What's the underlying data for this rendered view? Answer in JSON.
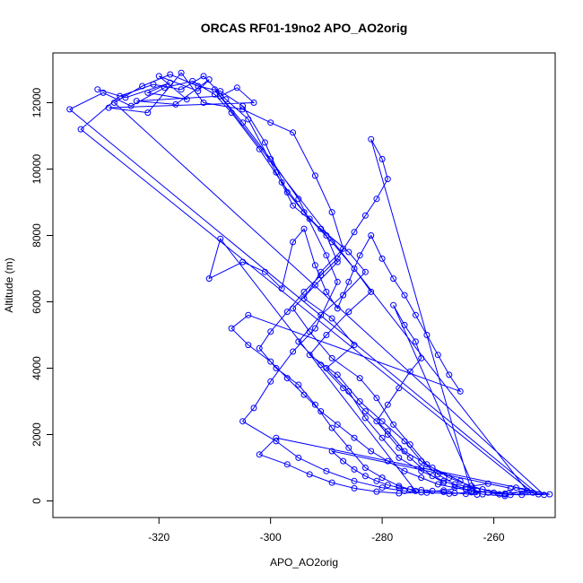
{
  "chart_data": {
    "type": "scatter",
    "title": "ORCAS RF01-19no2 APO_AO2orig",
    "xlabel": "APO_AO2orig",
    "ylabel": "Altitude (m)",
    "xlim": [
      -339,
      -249
    ],
    "ylim": [
      -500,
      13500
    ],
    "xticks": [
      -320,
      -300,
      -280,
      -260
    ],
    "yticks": [
      0,
      2000,
      4000,
      6000,
      8000,
      10000,
      12000
    ],
    "marker": "open-circle",
    "connected": true,
    "color": "#0000ff",
    "grid": false,
    "series": [
      {
        "values": [
          [
            -331,
            12400
          ],
          [
            -326,
            12150
          ],
          [
            -318,
            12600
          ],
          [
            -322,
            12300
          ],
          [
            -315,
            12100
          ],
          [
            -320,
            12800
          ],
          [
            -313,
            12350
          ],
          [
            -311,
            12700
          ],
          [
            -317,
            11950
          ],
          [
            -324,
            12050
          ],
          [
            -309,
            12200
          ],
          [
            -306,
            12450
          ],
          [
            -303,
            12000
          ],
          [
            -329,
            11850
          ],
          [
            -322,
            11700
          ],
          [
            -316,
            12900
          ],
          [
            -312,
            12000
          ],
          [
            -305,
            11800
          ],
          [
            -300,
            11400
          ],
          [
            -296,
            11100
          ],
          [
            -292,
            9800
          ],
          [
            -289,
            8700
          ],
          [
            -287,
            7600
          ],
          [
            -291,
            6900
          ],
          [
            -294,
            6100
          ],
          [
            -289,
            5500
          ],
          [
            -285,
            4700
          ],
          [
            -290,
            4000
          ],
          [
            -286,
            3300
          ],
          [
            -283,
            2500
          ],
          [
            -280,
            1900
          ],
          [
            -277,
            1300
          ],
          [
            -273,
            900
          ],
          [
            -269,
            600
          ],
          [
            -265,
            350
          ],
          [
            -262,
            200
          ],
          [
            -258,
            150
          ],
          [
            -255,
            300
          ],
          [
            -252,
            200
          ],
          [
            -336,
            11800
          ],
          [
            -330,
            12300
          ],
          [
            -325,
            11900
          ],
          [
            -319,
            12450
          ],
          [
            -314,
            12650
          ],
          [
            -310,
            12250
          ],
          [
            -307,
            11700
          ],
          [
            -302,
            10600
          ],
          [
            -298,
            9600
          ],
          [
            -294,
            8700
          ],
          [
            -290,
            8000
          ],
          [
            -288,
            7200
          ],
          [
            -292,
            6500
          ],
          [
            -296,
            5800
          ],
          [
            -293,
            5100
          ],
          [
            -289,
            4300
          ],
          [
            -284,
            3700
          ],
          [
            -281,
            3100
          ],
          [
            -278,
            2300
          ],
          [
            -275,
            1700
          ],
          [
            -272,
            1100
          ],
          [
            -268,
            700
          ],
          [
            -264,
            450
          ],
          [
            -260,
            250
          ],
          [
            -257,
            180
          ],
          [
            -253,
            250
          ],
          [
            -334,
            11200
          ],
          [
            -327,
            12200
          ],
          [
            -321,
            12550
          ],
          [
            -316,
            12400
          ],
          [
            -312,
            12800
          ],
          [
            -308,
            12100
          ],
          [
            -304,
            11500
          ],
          [
            -299,
            9900
          ],
          [
            -296,
            8900
          ],
          [
            -291,
            8200
          ],
          [
            -286,
            7500
          ],
          [
            -283,
            6900
          ],
          [
            -287,
            6200
          ],
          [
            -291,
            5600
          ],
          [
            -295,
            4800
          ],
          [
            -291,
            4100
          ],
          [
            -287,
            3400
          ],
          [
            -283,
            2700
          ],
          [
            -279,
            2100
          ],
          [
            -276,
            1500
          ],
          [
            -271,
            1000
          ],
          [
            -266,
            600
          ],
          [
            -263,
            300
          ],
          [
            -259,
            200
          ],
          [
            -256,
            400
          ],
          [
            -251,
            180
          ],
          [
            -328,
            12000
          ],
          [
            -323,
            12500
          ],
          [
            -318,
            12850
          ],
          [
            -313,
            12500
          ],
          [
            -309,
            12350
          ],
          [
            -305,
            11900
          ],
          [
            -301,
            10800
          ],
          [
            -297,
            9300
          ],
          [
            -293,
            8500
          ],
          [
            -289,
            7800
          ],
          [
            -285,
            7000
          ],
          [
            -282,
            6300
          ],
          [
            -286,
            5700
          ],
          [
            -290,
            5000
          ],
          [
            -293,
            4400
          ],
          [
            -288,
            3800
          ],
          [
            -284,
            3000
          ],
          [
            -280,
            2400
          ],
          [
            -276,
            1800
          ],
          [
            -273,
            1200
          ],
          [
            -270,
            800
          ],
          [
            -267,
            500
          ],
          [
            -262,
            350
          ],
          [
            -258,
            220
          ],
          [
            -254,
            300
          ],
          [
            -310,
            12400
          ],
          [
            -305,
            11400
          ],
          [
            -300,
            10300
          ],
          [
            -295,
            9100
          ],
          [
            -290,
            7400
          ],
          [
            -288,
            6600
          ],
          [
            -292,
            5200
          ],
          [
            -296,
            4500
          ],
          [
            -300,
            3600
          ],
          [
            -303,
            2800
          ],
          [
            -305,
            2400
          ],
          [
            -299,
            1800
          ],
          [
            -295,
            1300
          ],
          [
            -290,
            900
          ],
          [
            -285,
            600
          ],
          [
            -280,
            400
          ],
          [
            -276,
            300
          ],
          [
            -272,
            250
          ],
          [
            -268,
            220
          ],
          [
            -264,
            260
          ],
          [
            -282,
            10900
          ],
          [
            -280,
            10300
          ],
          [
            -279,
            9700
          ],
          [
            -281,
            9100
          ],
          [
            -283,
            8600
          ],
          [
            -285,
            8100
          ],
          [
            -288,
            7300
          ],
          [
            -291,
            6800
          ],
          [
            -294,
            6300
          ],
          [
            -297,
            5700
          ],
          [
            -300,
            5100
          ],
          [
            -302,
            4600
          ],
          [
            -299,
            4000
          ],
          [
            -295,
            3500
          ],
          [
            -292,
            2900
          ],
          [
            -289,
            2200
          ],
          [
            -286,
            1600
          ],
          [
            -283,
            1000
          ],
          [
            -280,
            700
          ],
          [
            -277,
            450
          ],
          [
            -274,
            300
          ],
          [
            -309,
            7900
          ],
          [
            -311,
            6700
          ],
          [
            -305,
            7200
          ],
          [
            -301,
            6900
          ],
          [
            -298,
            6400
          ],
          [
            -296,
            7800
          ],
          [
            -294,
            8200
          ],
          [
            -292,
            7100
          ],
          [
            -290,
            6300
          ],
          [
            -288,
            5800
          ],
          [
            -286,
            6600
          ],
          [
            -284,
            7400
          ],
          [
            -282,
            8000
          ],
          [
            -280,
            7300
          ],
          [
            -278,
            6700
          ],
          [
            -276,
            6200
          ],
          [
            -274,
            5600
          ],
          [
            -272,
            5000
          ],
          [
            -270,
            4400
          ],
          [
            -268,
            3800
          ],
          [
            -266,
            3300
          ],
          [
            -304,
            5600
          ],
          [
            -307,
            5200
          ],
          [
            -304,
            4700
          ],
          [
            -300,
            4200
          ],
          [
            -297,
            3700
          ],
          [
            -294,
            3200
          ],
          [
            -291,
            2700
          ],
          [
            -288,
            2300
          ],
          [
            -285,
            1900
          ],
          [
            -282,
            1500
          ],
          [
            -279,
            1200
          ],
          [
            -276,
            900
          ],
          [
            -273,
            700
          ],
          [
            -270,
            500
          ],
          [
            -267,
            400
          ],
          [
            -264,
            300
          ],
          [
            -261,
            250
          ],
          [
            -258,
            200
          ],
          [
            -255,
            180
          ],
          [
            -250,
            200
          ],
          [
            -299,
            1900
          ],
          [
            -302,
            1400
          ],
          [
            -297,
            1100
          ],
          [
            -293,
            800
          ],
          [
            -289,
            550
          ],
          [
            -285,
            380
          ],
          [
            -281,
            280
          ],
          [
            -277,
            230
          ],
          [
            -273,
            260
          ],
          [
            -269,
            320
          ],
          [
            -265,
            420
          ],
          [
            -261,
            520
          ],
          [
            -257,
            380
          ],
          [
            -289,
            1500
          ],
          [
            -287,
            1200
          ],
          [
            -285,
            950
          ],
          [
            -283,
            750
          ],
          [
            -281,
            600
          ],
          [
            -279,
            480
          ],
          [
            -277,
            400
          ],
          [
            -275,
            350
          ],
          [
            -273,
            330
          ],
          [
            -271,
            300
          ],
          [
            -269,
            270
          ],
          [
            -267,
            240
          ],
          [
            -265,
            210
          ],
          [
            -263,
            190
          ],
          [
            -278,
            5900
          ],
          [
            -276,
            5300
          ],
          [
            -274,
            4800
          ],
          [
            -273,
            4300
          ],
          [
            -275,
            3900
          ],
          [
            -277,
            3400
          ],
          [
            -279,
            2900
          ],
          [
            -281,
            2400
          ],
          [
            -279,
            2000
          ],
          [
            -277,
            1600
          ],
          [
            -275,
            1300
          ],
          [
            -273,
            1000
          ],
          [
            -271,
            750
          ],
          [
            -269,
            550
          ]
        ]
      }
    ]
  }
}
